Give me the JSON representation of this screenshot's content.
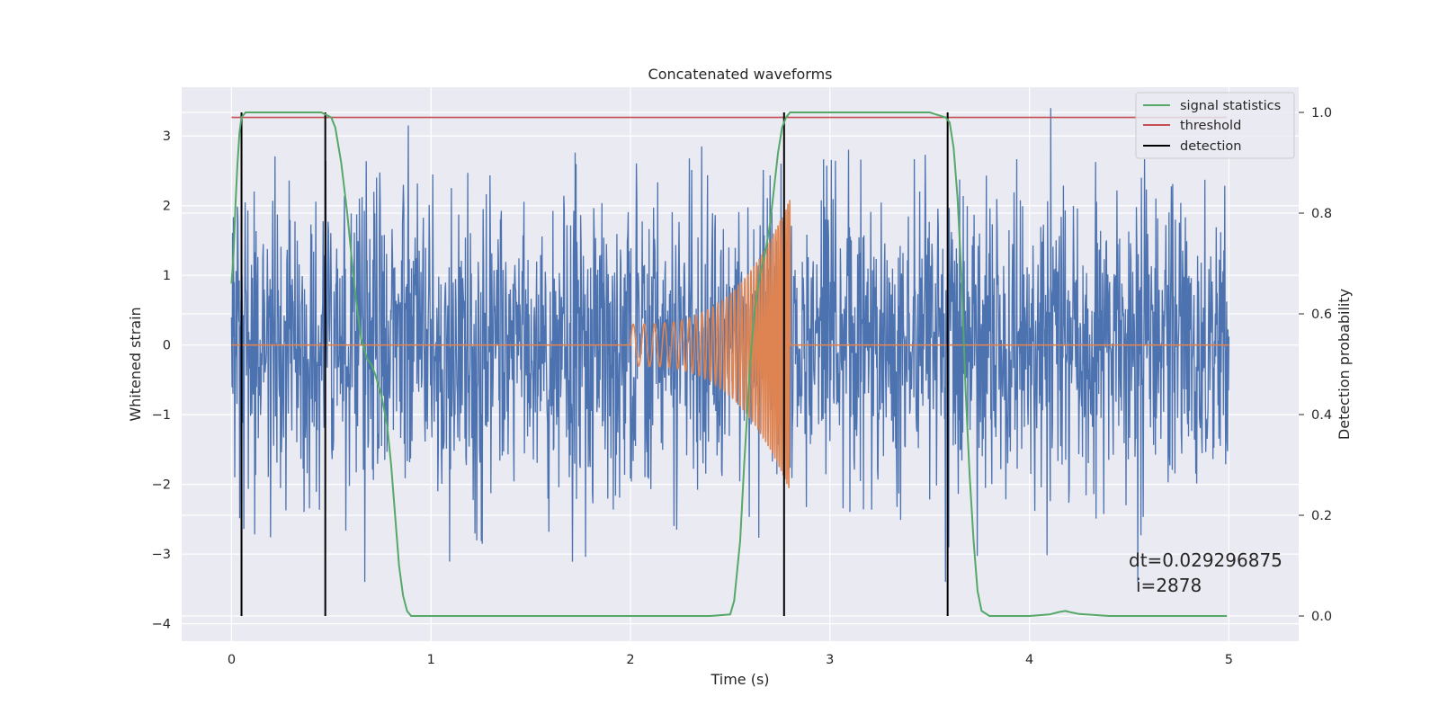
{
  "chart_data": {
    "type": "line",
    "title": "Concatenated waveforms",
    "xlabel": "Time (s)",
    "ylabel": "Whitened strain",
    "y2label": "Detection probability",
    "xlim": [
      -0.25,
      5.35
    ],
    "ylim": [
      -4.25,
      3.7
    ],
    "y2lim": [
      -0.05,
      1.05
    ],
    "xticks": [
      0,
      1,
      2,
      3,
      4,
      5
    ],
    "xtick_labels": [
      "0",
      "1",
      "2",
      "3",
      "4",
      "5"
    ],
    "yticks": [
      3,
      2,
      1,
      0,
      -1,
      -2,
      -3,
      -4
    ],
    "ytick_labels": [
      "3",
      "2",
      "1",
      "0",
      "−1",
      "−2",
      "−3",
      "−4"
    ],
    "y2ticks": [
      0.0,
      0.2,
      0.4,
      0.6,
      0.8,
      1.0
    ],
    "y2tick_labels": [
      "0.0",
      "0.2",
      "0.4",
      "0.6",
      "0.8",
      "1.0"
    ],
    "grid": true,
    "legend_position": "top-right",
    "legend": [
      "signal statistics",
      "threshold",
      "detection"
    ],
    "colors": {
      "strain": "#4c72b0",
      "chirp": "#dd8452",
      "signal": "#55a868",
      "threshold": "#c44e52",
      "detection": "#000000",
      "plot_bg": "#eaeaf2",
      "grid": "#ffffff"
    },
    "series": [
      {
        "name": "signal statistics",
        "axis": "right",
        "x": [
          0.0,
          0.01,
          0.02,
          0.03,
          0.04,
          0.05,
          0.07,
          0.1,
          0.2,
          0.3,
          0.4,
          0.45,
          0.5,
          0.52,
          0.55,
          0.58,
          0.6,
          0.62,
          0.65,
          0.68,
          0.7,
          0.72,
          0.75,
          0.78,
          0.8,
          0.82,
          0.84,
          0.86,
          0.88,
          0.9,
          0.95,
          1.2,
          2.0,
          2.4,
          2.5,
          2.52,
          2.55,
          2.57,
          2.6,
          2.62,
          2.65,
          2.68,
          2.7,
          2.72,
          2.74,
          2.76,
          2.78,
          2.8,
          2.85,
          3.0,
          3.5,
          3.58,
          3.6,
          3.62,
          3.64,
          3.66,
          3.68,
          3.7,
          3.72,
          3.74,
          3.76,
          3.8,
          4.0,
          4.1,
          4.15,
          4.18,
          4.2,
          4.25,
          4.4,
          4.99
        ],
        "y": [
          0.66,
          0.72,
          0.82,
          0.9,
          0.96,
          0.99,
          1.0,
          1.0,
          1.0,
          1.0,
          1.0,
          1.0,
          0.99,
          0.97,
          0.9,
          0.8,
          0.72,
          0.64,
          0.55,
          0.51,
          0.5,
          0.48,
          0.44,
          0.38,
          0.3,
          0.2,
          0.1,
          0.04,
          0.01,
          0.0,
          0.0,
          0.0,
          0.0,
          0.0,
          0.003,
          0.03,
          0.15,
          0.3,
          0.5,
          0.6,
          0.68,
          0.73,
          0.78,
          0.85,
          0.92,
          0.97,
          0.99,
          1.0,
          1.0,
          1.0,
          1.0,
          0.99,
          0.98,
          0.93,
          0.83,
          0.67,
          0.45,
          0.28,
          0.15,
          0.05,
          0.01,
          0.0,
          0.0,
          0.003,
          0.008,
          0.01,
          0.008,
          0.004,
          0.0,
          0.0
        ]
      },
      {
        "name": "threshold",
        "axis": "right",
        "x": [
          0.0,
          4.99
        ],
        "y": [
          0.99,
          0.99
        ]
      },
      {
        "name": "detection",
        "type": "vlines",
        "axis": "right",
        "x": [
          0.05,
          0.47,
          2.77,
          3.59
        ],
        "y_range": [
          0.0,
          1.0
        ]
      },
      {
        "name": "",
        "role": "whitened strain noise",
        "axis": "left",
        "x_range": [
          0.0,
          5.0
        ],
        "amplitude_std": 1.05,
        "peak_abs": 3.4
      },
      {
        "name": "",
        "role": "injected chirp",
        "axis": "left",
        "x_range": [
          2.0,
          2.8
        ],
        "amplitude_start": 0.3,
        "amplitude_end": 2.1,
        "frequency_start_hz": 18,
        "frequency_end_hz": 110
      }
    ],
    "annotations": [
      "dt=0.029296875",
      "i=2878"
    ]
  }
}
